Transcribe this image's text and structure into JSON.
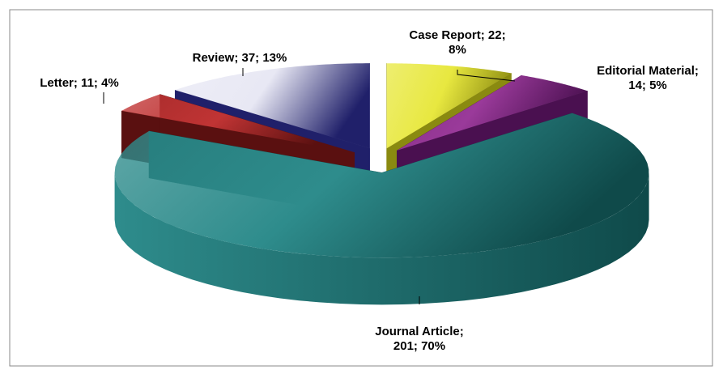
{
  "chart_data": {
    "type": "pie",
    "three_d": true,
    "values": [
      22,
      14,
      201,
      11,
      37
    ],
    "value_labels": [
      [
        "Case Report; 22;",
        "8%"
      ],
      [
        "Editorial  Material;",
        "14; 5%"
      ],
      [
        "Journal  Article;",
        "201; 70%"
      ],
      [
        "Letter; 11; 4%"
      ],
      [
        "Review; 37; 13%"
      ]
    ],
    "colors": [
      "#e8e840",
      "#9a3a9a",
      "#2e8c8c",
      "#c03434",
      "#e8e8f4"
    ],
    "dark_colors": [
      "#8a8a10",
      "#4a1050",
      "#0f4a4a",
      "#5a1010",
      "#20206a"
    ]
  }
}
